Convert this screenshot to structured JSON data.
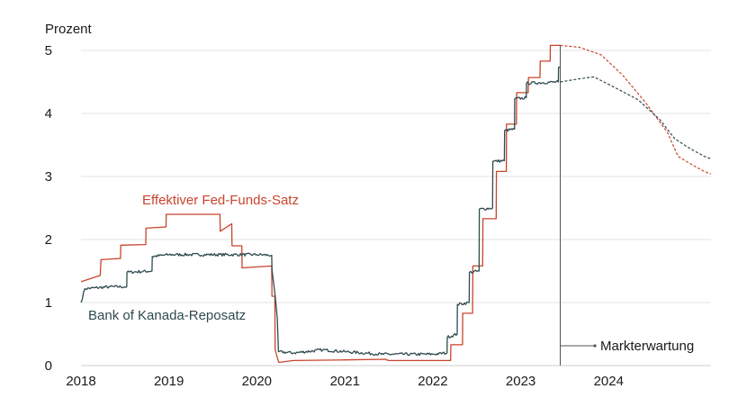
{
  "chart_data": {
    "type": "line",
    "title": "",
    "ylabel": "Prozent",
    "xlabel": "",
    "ylim": [
      0,
      5
    ],
    "xlim": [
      "2018-01-01",
      "2025-03-01"
    ],
    "yticks": [
      "0",
      "1",
      "2",
      "3",
      "4",
      "5"
    ],
    "xticks": [
      {
        "label": "2018",
        "date": "2018-01-01"
      },
      {
        "label": "2019",
        "date": "2019-01-01"
      },
      {
        "label": "2020",
        "date": "2020-01-01"
      },
      {
        "label": "2021",
        "date": "2021-01-01"
      },
      {
        "label": "2022",
        "date": "2022-01-01"
      },
      {
        "label": "2023",
        "date": "2023-01-01"
      },
      {
        "label": "2024",
        "date": "2024-01-01"
      }
    ],
    "grid": true,
    "legend": "none",
    "colors": {
      "fed": "#c8442c",
      "boc": "#2f4a4f",
      "marker": "#555555"
    },
    "series": [
      {
        "name": "Effektiver Fed-Funds-Satz",
        "style": "step",
        "color": "#c8442c",
        "points": [
          [
            "2018-01-01",
            1.33
          ],
          [
            "2018-03-22",
            1.43
          ],
          [
            "2018-03-25",
            1.68
          ],
          [
            "2018-06-14",
            1.7
          ],
          [
            "2018-06-15",
            1.91
          ],
          [
            "2018-09-27",
            1.92
          ],
          [
            "2018-09-28",
            2.18
          ],
          [
            "2018-12-20",
            2.2
          ],
          [
            "2018-12-21",
            2.4
          ],
          [
            "2019-08-01",
            2.4
          ],
          [
            "2019-08-02",
            2.13
          ],
          [
            "2019-09-19",
            2.25
          ],
          [
            "2019-09-20",
            1.9
          ],
          [
            "2019-10-31",
            1.9
          ],
          [
            "2019-11-01",
            1.55
          ],
          [
            "2020-03-03",
            1.58
          ],
          [
            "2020-03-04",
            1.1
          ],
          [
            "2020-03-16",
            1.1
          ],
          [
            "2020-03-17",
            0.25
          ],
          [
            "2020-04-01",
            0.05
          ],
          [
            "2020-06-01",
            0.08
          ],
          [
            "2021-01-01",
            0.09
          ],
          [
            "2021-06-17",
            0.1
          ],
          [
            "2021-07-01",
            0.08
          ],
          [
            "2022-01-01",
            0.08
          ],
          [
            "2022-03-16",
            0.08
          ],
          [
            "2022-03-17",
            0.33
          ],
          [
            "2022-05-04",
            0.33
          ],
          [
            "2022-05-05",
            0.83
          ],
          [
            "2022-06-15",
            0.83
          ],
          [
            "2022-06-16",
            1.58
          ],
          [
            "2022-07-27",
            1.58
          ],
          [
            "2022-07-28",
            2.33
          ],
          [
            "2022-09-21",
            2.33
          ],
          [
            "2022-09-22",
            3.08
          ],
          [
            "2022-11-02",
            3.08
          ],
          [
            "2022-11-03",
            3.83
          ],
          [
            "2022-12-14",
            3.83
          ],
          [
            "2022-12-15",
            4.33
          ],
          [
            "2023-02-01",
            4.33
          ],
          [
            "2023-02-02",
            4.57
          ],
          [
            "2023-03-22",
            4.57
          ],
          [
            "2023-03-23",
            4.83
          ],
          [
            "2023-05-03",
            4.83
          ],
          [
            "2023-05-04",
            5.08
          ],
          [
            "2023-06-14",
            5.08
          ]
        ]
      },
      {
        "name": "Bank of Kanada-Reposatz",
        "style": "noisy",
        "color": "#2f4a4f",
        "points": [
          [
            "2018-01-01",
            1.0
          ],
          [
            "2018-01-17",
            1.22
          ],
          [
            "2018-05-01",
            1.25
          ],
          [
            "2018-07-10",
            1.25
          ],
          [
            "2018-07-11",
            1.48
          ],
          [
            "2018-10-23",
            1.5
          ],
          [
            "2018-10-24",
            1.73
          ],
          [
            "2019-01-01",
            1.76
          ],
          [
            "2020-01-01",
            1.76
          ],
          [
            "2020-03-03",
            1.75
          ],
          [
            "2020-03-04",
            1.52
          ],
          [
            "2020-03-12",
            1.28
          ],
          [
            "2020-03-26",
            0.75
          ],
          [
            "2020-03-31",
            0.22
          ],
          [
            "2020-06-01",
            0.2
          ],
          [
            "2020-10-01",
            0.25
          ],
          [
            "2021-01-01",
            0.22
          ],
          [
            "2021-06-01",
            0.18
          ],
          [
            "2022-01-01",
            0.18
          ],
          [
            "2022-03-01",
            0.2
          ],
          [
            "2022-03-02",
            0.45
          ],
          [
            "2022-04-12",
            0.5
          ],
          [
            "2022-04-13",
            0.97
          ],
          [
            "2022-06-01",
            1.0
          ],
          [
            "2022-06-02",
            1.48
          ],
          [
            "2022-07-12",
            1.5
          ],
          [
            "2022-07-13",
            2.48
          ],
          [
            "2022-09-06",
            2.5
          ],
          [
            "2022-09-07",
            3.24
          ],
          [
            "2022-10-25",
            3.25
          ],
          [
            "2022-10-26",
            3.73
          ],
          [
            "2022-12-06",
            3.75
          ],
          [
            "2022-12-07",
            4.23
          ],
          [
            "2023-01-24",
            4.25
          ],
          [
            "2023-01-25",
            4.48
          ],
          [
            "2023-06-06",
            4.5
          ],
          [
            "2023-06-07",
            4.73
          ],
          [
            "2023-06-14",
            4.74
          ]
        ]
      },
      {
        "name": "Markterwartung Fed",
        "style": "dashed",
        "color": "#c8442c",
        "points": [
          [
            "2023-06-14",
            5.08
          ],
          [
            "2023-09-01",
            5.05
          ],
          [
            "2023-12-01",
            4.93
          ],
          [
            "2024-03-01",
            4.6
          ],
          [
            "2024-06-01",
            4.18
          ],
          [
            "2024-09-01",
            3.7
          ],
          [
            "2024-10-15",
            3.32
          ],
          [
            "2024-12-15",
            3.18
          ],
          [
            "2025-02-01",
            3.08
          ],
          [
            "2025-03-01",
            3.04
          ]
        ]
      },
      {
        "name": "Markterwartung Kanada",
        "style": "dashed",
        "color": "#2f4a4f",
        "points": [
          [
            "2023-06-14",
            4.5
          ],
          [
            "2023-09-01",
            4.55
          ],
          [
            "2023-11-01",
            4.58
          ],
          [
            "2024-02-01",
            4.4
          ],
          [
            "2024-05-01",
            4.22
          ],
          [
            "2024-08-01",
            3.9
          ],
          [
            "2024-10-01",
            3.6
          ],
          [
            "2024-12-01",
            3.45
          ],
          [
            "2025-02-01",
            3.32
          ],
          [
            "2025-03-01",
            3.28
          ]
        ]
      }
    ],
    "annotations": [
      {
        "text": "Effektiver Fed-Funds-Satz",
        "series": "fed"
      },
      {
        "text": "Bank of Kanada-Reposatz",
        "series": "boc"
      },
      {
        "text": "Markterwartung",
        "date": "2023-06-14"
      }
    ]
  }
}
